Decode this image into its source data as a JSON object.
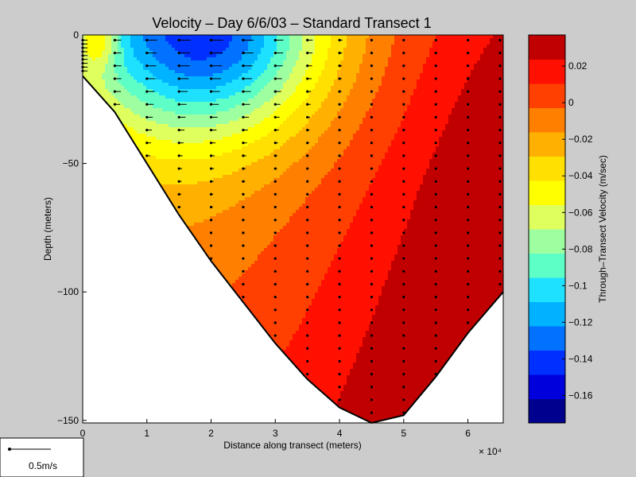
{
  "chart_data": {
    "type": "heatmap",
    "title": "Velocity – Day 6/6/03 – Standard Transect 1",
    "xlabel": "Distance along transect (meters)",
    "ylabel": "Depth (meters)",
    "x_scale_label": "× 10⁴",
    "xlim": [
      0,
      65500
    ],
    "ylim": [
      -151,
      0
    ],
    "x_ticks": [
      {
        "value": 0,
        "label": "0"
      },
      {
        "value": 10000,
        "label": "1"
      },
      {
        "value": 20000,
        "label": "2"
      },
      {
        "value": 30000,
        "label": "3"
      },
      {
        "value": 40000,
        "label": "4"
      },
      {
        "value": 50000,
        "label": "5"
      },
      {
        "value": 60000,
        "label": "6"
      }
    ],
    "y_ticks": [
      {
        "value": 0,
        "label": "0"
      },
      {
        "value": -50,
        "label": "−50"
      },
      {
        "value": -100,
        "label": "−100"
      },
      {
        "value": -150,
        "label": "−150"
      }
    ],
    "colorbar": {
      "label": "Through–Transect Velocity (m/sec)",
      "range": [
        -0.175,
        0.037
      ],
      "ticks": [
        {
          "value": 0.02,
          "label": "0.02"
        },
        {
          "value": 0,
          "label": "0"
        },
        {
          "value": -0.02,
          "label": "−0.02"
        },
        {
          "value": -0.04,
          "label": "−0.04"
        },
        {
          "value": -0.06,
          "label": "−0.06"
        },
        {
          "value": -0.08,
          "label": "−0.08"
        },
        {
          "value": -0.1,
          "label": "−0.1"
        },
        {
          "value": -0.12,
          "label": "−0.12"
        },
        {
          "value": -0.14,
          "label": "−0.14"
        },
        {
          "value": -0.16,
          "label": "−0.16"
        }
      ],
      "colors": [
        "#00008f",
        "#0000dd",
        "#0030ff",
        "#0072ff",
        "#00b2ff",
        "#1ee1ff",
        "#5effc6",
        "#9effa0",
        "#dfff5e",
        "#ffff00",
        "#ffe000",
        "#ffb000",
        "#ff7f00",
        "#ff4000",
        "#ff1000",
        "#c00000"
      ]
    },
    "bottom_profile": [
      {
        "x": 0,
        "depth": -16
      },
      {
        "x": 5000,
        "depth": -30
      },
      {
        "x": 10000,
        "depth": -50
      },
      {
        "x": 15000,
        "depth": -70
      },
      {
        "x": 20000,
        "depth": -88
      },
      {
        "x": 25000,
        "depth": -104
      },
      {
        "x": 30000,
        "depth": -120
      },
      {
        "x": 35000,
        "depth": -134
      },
      {
        "x": 40000,
        "depth": -145
      },
      {
        "x": 45000,
        "depth": -151
      },
      {
        "x": 50000,
        "depth": -148
      },
      {
        "x": 55000,
        "depth": -133
      },
      {
        "x": 60000,
        "depth": -116
      },
      {
        "x": 65500,
        "depth": -100
      }
    ],
    "velocity_field_description": "Strongest negative velocity (about −0.16 m/s) near the surface between 0.5×10⁴ and 3×10⁴ m; velocities increase toward the east and with depth, reaching about +0.02 m/s near the bottom at 6–6.5×10⁴ m.",
    "stations_x": [
      0,
      5000,
      10000,
      15000,
      20000,
      25000,
      30000,
      35000,
      40000,
      45000,
      50000,
      55000,
      60000,
      65000
    ],
    "scale_arrow_label": "0.5m/s"
  }
}
